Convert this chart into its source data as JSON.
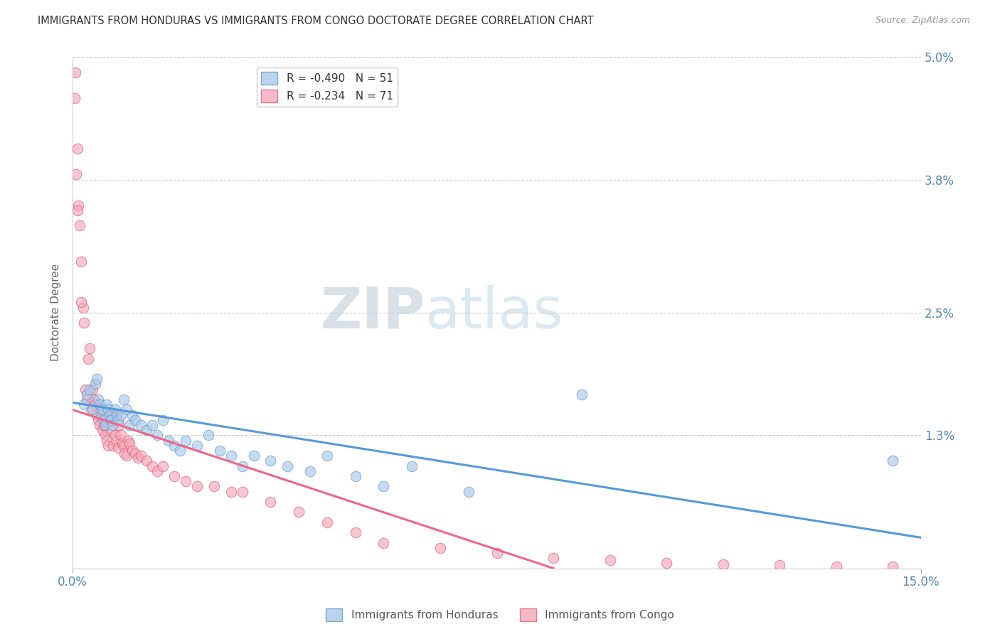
{
  "title": "IMMIGRANTS FROM HONDURAS VS IMMIGRANTS FROM CONGO DOCTORATE DEGREE CORRELATION CHART",
  "source": "Source: ZipAtlas.com",
  "ylabel": "Doctorate Degree",
  "xlim": [
    0.0,
    15.0
  ],
  "ylim": [
    0.0,
    5.0
  ],
  "yticks": [
    0.0,
    1.3,
    2.5,
    3.8,
    5.0
  ],
  "ytick_labels": [
    "",
    "1.3%",
    "2.5%",
    "3.8%",
    "5.0%"
  ],
  "watermark_zip": "ZIP",
  "watermark_atlas": "atlas",
  "legend_line1": "R = -0.490   N = 51",
  "legend_line2": "R = -0.234   N = 71",
  "series1_color": "#aac8e8",
  "series1_edge": "#6699cc",
  "series2_color": "#f4a8b8",
  "series2_edge": "#e06080",
  "line1_color": "#5599dd",
  "line2_color": "#ee6688",
  "background_color": "#ffffff",
  "grid_color": "#cccccc",
  "title_color": "#333333",
  "axis_color": "#5588bb",
  "series1_x": [
    0.2,
    0.25,
    0.3,
    0.35,
    0.4,
    0.42,
    0.45,
    0.48,
    0.5,
    0.52,
    0.55,
    0.58,
    0.6,
    0.62,
    0.65,
    0.68,
    0.7,
    0.75,
    0.78,
    0.8,
    0.85,
    0.9,
    0.95,
    1.0,
    1.05,
    1.1,
    1.2,
    1.3,
    1.4,
    1.5,
    1.6,
    1.7,
    1.8,
    1.9,
    2.0,
    2.2,
    2.4,
    2.6,
    2.8,
    3.0,
    3.2,
    3.5,
    3.8,
    4.2,
    4.5,
    5.0,
    5.5,
    6.0,
    7.0,
    9.0,
    14.5
  ],
  "series1_y": [
    1.6,
    1.7,
    1.75,
    1.55,
    1.8,
    1.85,
    1.65,
    1.6,
    1.5,
    1.55,
    1.45,
    1.4,
    1.6,
    1.55,
    1.5,
    1.45,
    1.4,
    1.55,
    1.5,
    1.45,
    1.5,
    1.65,
    1.55,
    1.4,
    1.5,
    1.45,
    1.4,
    1.35,
    1.4,
    1.3,
    1.45,
    1.25,
    1.2,
    1.15,
    1.25,
    1.2,
    1.3,
    1.15,
    1.1,
    1.0,
    1.1,
    1.05,
    1.0,
    0.95,
    1.1,
    0.9,
    0.8,
    1.0,
    0.75,
    1.7,
    1.05
  ],
  "series2_x": [
    0.05,
    0.08,
    0.1,
    0.12,
    0.15,
    0.18,
    0.2,
    0.22,
    0.25,
    0.28,
    0.3,
    0.32,
    0.35,
    0.38,
    0.4,
    0.42,
    0.45,
    0.48,
    0.5,
    0.52,
    0.55,
    0.58,
    0.6,
    0.62,
    0.65,
    0.68,
    0.7,
    0.72,
    0.75,
    0.78,
    0.8,
    0.82,
    0.85,
    0.88,
    0.9,
    0.92,
    0.95,
    0.98,
    1.0,
    1.05,
    1.1,
    1.15,
    1.2,
    1.3,
    1.4,
    1.5,
    1.6,
    1.8,
    2.0,
    2.2,
    2.5,
    2.8,
    3.0,
    3.5,
    4.0,
    4.5,
    5.0,
    5.5,
    6.5,
    7.5,
    8.5,
    9.5,
    10.5,
    11.5,
    12.5,
    13.5,
    14.5,
    0.03,
    0.06,
    0.08,
    0.15
  ],
  "series2_y": [
    4.85,
    4.1,
    3.55,
    3.35,
    3.0,
    2.55,
    2.4,
    1.75,
    1.65,
    2.05,
    2.15,
    1.55,
    1.75,
    1.65,
    1.6,
    1.5,
    1.45,
    1.4,
    1.55,
    1.35,
    1.4,
    1.3,
    1.25,
    1.2,
    1.45,
    1.35,
    1.5,
    1.2,
    1.3,
    1.25,
    1.18,
    1.4,
    1.3,
    1.22,
    1.2,
    1.12,
    1.1,
    1.25,
    1.22,
    1.15,
    1.12,
    1.08,
    1.1,
    1.05,
    1.0,
    0.95,
    1.0,
    0.9,
    0.85,
    0.8,
    0.8,
    0.75,
    0.75,
    0.65,
    0.55,
    0.45,
    0.35,
    0.25,
    0.2,
    0.15,
    0.1,
    0.08,
    0.05,
    0.04,
    0.03,
    0.02,
    0.02,
    4.6,
    3.85,
    3.5,
    2.6
  ],
  "line1_x0": 0.0,
  "line1_x1": 15.0,
  "line1_y0": 1.62,
  "line1_y1": 0.3,
  "line2_x0": 0.0,
  "line2_x1": 8.5,
  "line2_y0": 1.55,
  "line2_y1": 0.0
}
